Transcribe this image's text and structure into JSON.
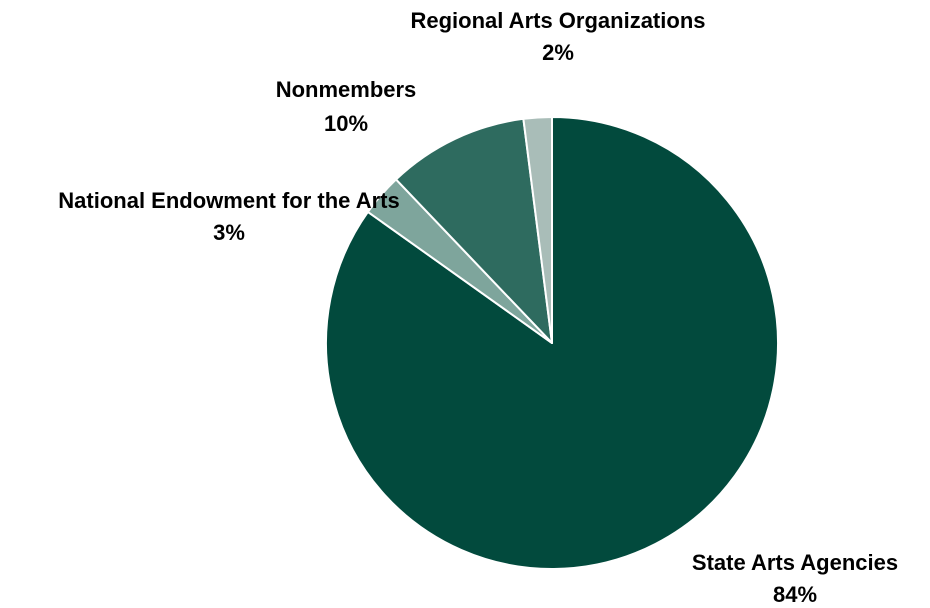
{
  "chart_data": {
    "type": "pie",
    "title": "",
    "slices": [
      {
        "label": "State Arts Agencies",
        "value": 84,
        "value_label": "84%",
        "color": "#024a3d"
      },
      {
        "label": "National Endowment for the Arts",
        "value": 3,
        "value_label": "3%",
        "color": "#7ea59c"
      },
      {
        "label": "Nonmembers",
        "value": 10,
        "value_label": "10%",
        "color": "#2e6b5f"
      },
      {
        "label": "Regional Arts Organizations",
        "value": 2,
        "value_label": "2%",
        "color": "#a9bdb8"
      }
    ],
    "start": "12 o'clock",
    "direction": "clockwise"
  }
}
